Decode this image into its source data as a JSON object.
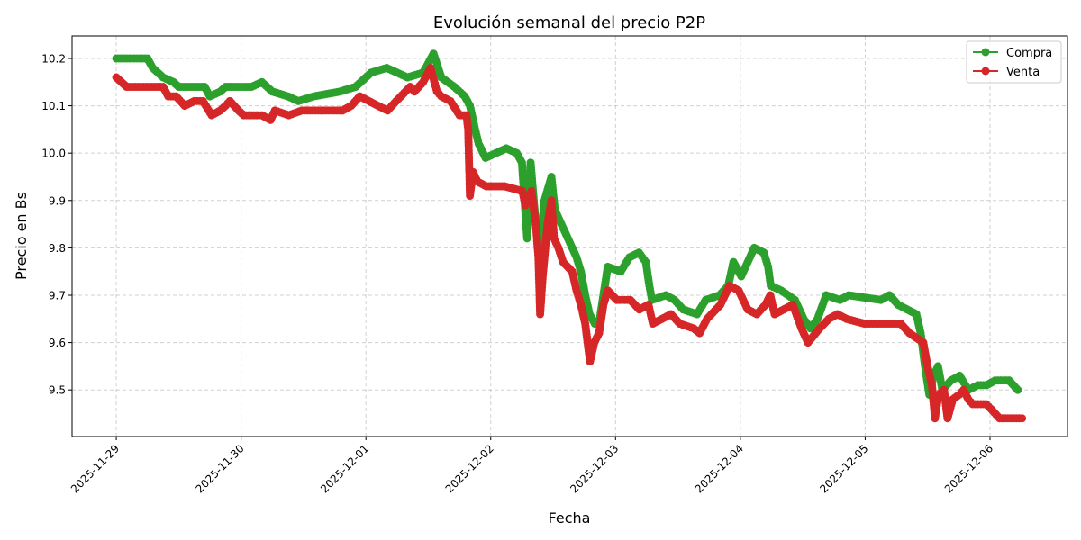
{
  "chart_data": {
    "type": "line",
    "title": "Evolución semanal del precio P2P",
    "xlabel": "Fecha",
    "ylabel": "Precio en Bs",
    "xlim": [
      "2025-11-28T15:30",
      "2025-12-06T14:54"
    ],
    "ylim": [
      9.4015,
      10.2475
    ],
    "x_ticks": [
      "2025-11-29",
      "2025-11-30",
      "2025-12-01",
      "2025-12-02",
      "2025-12-03",
      "2025-12-04",
      "2025-12-05",
      "2025-12-06"
    ],
    "y_ticks": [
      "9.5",
      "9.6",
      "9.7",
      "9.8",
      "9.9",
      "10.0",
      "10.1",
      "10.2"
    ],
    "grid": true,
    "legend_position": "top-right",
    "series": [
      {
        "name": "Compra",
        "color": "#2ca02c",
        "marker": "circle",
        "points": [
          [
            "2025-11-29T00:00",
            10.2
          ],
          [
            "2025-11-29T06:00",
            10.2
          ],
          [
            "2025-11-29T07:00",
            10.18
          ],
          [
            "2025-11-29T09:00",
            10.16
          ],
          [
            "2025-11-29T11:00",
            10.15
          ],
          [
            "2025-11-29T12:00",
            10.14
          ],
          [
            "2025-11-29T17:00",
            10.14
          ],
          [
            "2025-11-29T18:00",
            10.12
          ],
          [
            "2025-11-29T20:00",
            10.13
          ],
          [
            "2025-11-29T21:00",
            10.14
          ],
          [
            "2025-11-30T02:00",
            10.14
          ],
          [
            "2025-11-30T04:00",
            10.15
          ],
          [
            "2025-11-30T06:00",
            10.13
          ],
          [
            "2025-11-30T09:00",
            10.12
          ],
          [
            "2025-11-30T11:00",
            10.11
          ],
          [
            "2025-11-30T14:00",
            10.12
          ],
          [
            "2025-11-30T19:00",
            10.13
          ],
          [
            "2025-11-30T22:00",
            10.14
          ],
          [
            "2025-12-01T01:00",
            10.17
          ],
          [
            "2025-12-01T04:00",
            10.18
          ],
          [
            "2025-12-01T06:00",
            10.17
          ],
          [
            "2025-12-01T08:00",
            10.16
          ],
          [
            "2025-12-01T11:00",
            10.17
          ],
          [
            "2025-12-01T13:00",
            10.21
          ],
          [
            "2025-12-01T14:30",
            10.16
          ],
          [
            "2025-12-01T17:00",
            10.14
          ],
          [
            "2025-12-01T19:00",
            10.12
          ],
          [
            "2025-12-01T20:00",
            10.1
          ],
          [
            "2025-12-01T21:00",
            10.05
          ],
          [
            "2025-12-01T21:40",
            10.02
          ],
          [
            "2025-12-01T23:00",
            9.99
          ],
          [
            "2025-12-02T01:00",
            10.0
          ],
          [
            "2025-12-02T03:00",
            10.01
          ],
          [
            "2025-12-02T05:00",
            10.0
          ],
          [
            "2025-12-02T06:00",
            9.98
          ],
          [
            "2025-12-02T07:00",
            9.82
          ],
          [
            "2025-12-02T07:40",
            9.98
          ],
          [
            "2025-12-02T08:40",
            9.85
          ],
          [
            "2025-12-02T09:30",
            9.8
          ],
          [
            "2025-12-02T10:20",
            9.9
          ],
          [
            "2025-12-02T11:40",
            9.95
          ],
          [
            "2025-12-02T12:20",
            9.88
          ],
          [
            "2025-12-02T13:10",
            9.86
          ],
          [
            "2025-12-02T14:50",
            9.82
          ],
          [
            "2025-12-02T16:30",
            9.78
          ],
          [
            "2025-12-02T17:20",
            9.75
          ],
          [
            "2025-12-02T18:10",
            9.7
          ],
          [
            "2025-12-02T19:00",
            9.66
          ],
          [
            "2025-12-02T20:00",
            9.64
          ],
          [
            "2025-12-02T20:50",
            9.64
          ],
          [
            "2025-12-02T21:40",
            9.7
          ],
          [
            "2025-12-02T22:30",
            9.76
          ],
          [
            "2025-12-03T01:00",
            9.75
          ],
          [
            "2025-12-03T02:40",
            9.78
          ],
          [
            "2025-12-03T04:30",
            9.79
          ],
          [
            "2025-12-03T05:50",
            9.77
          ],
          [
            "2025-12-03T06:30",
            9.72
          ],
          [
            "2025-12-03T07:00",
            9.69
          ],
          [
            "2025-12-03T09:40",
            9.7
          ],
          [
            "2025-12-03T11:20",
            9.69
          ],
          [
            "2025-12-03T13:00",
            9.67
          ],
          [
            "2025-12-03T15:40",
            9.66
          ],
          [
            "2025-12-03T17:20",
            9.69
          ],
          [
            "2025-12-03T20:00",
            9.7
          ],
          [
            "2025-12-03T21:40",
            9.72
          ],
          [
            "2025-12-03T22:40",
            9.77
          ],
          [
            "2025-12-04T00:10",
            9.74
          ],
          [
            "2025-12-04T01:50",
            9.78
          ],
          [
            "2025-12-04T02:40",
            9.8
          ],
          [
            "2025-12-04T04:30",
            9.79
          ],
          [
            "2025-12-04T05:20",
            9.76
          ],
          [
            "2025-12-04T05:50",
            9.72
          ],
          [
            "2025-12-04T07:50",
            9.71
          ],
          [
            "2025-12-04T10:30",
            9.69
          ],
          [
            "2025-12-04T12:10",
            9.65
          ],
          [
            "2025-12-04T13:30",
            9.63
          ],
          [
            "2025-12-04T14:50",
            9.65
          ],
          [
            "2025-12-04T16:30",
            9.7
          ],
          [
            "2025-12-04T19:10",
            9.69
          ],
          [
            "2025-12-04T20:50",
            9.7
          ],
          [
            "2025-12-05T03:00",
            9.69
          ],
          [
            "2025-12-05T04:40",
            9.7
          ],
          [
            "2025-12-05T06:20",
            9.68
          ],
          [
            "2025-12-05T09:50",
            9.66
          ],
          [
            "2025-12-05T10:40",
            9.62
          ],
          [
            "2025-12-05T11:30",
            9.55
          ],
          [
            "2025-12-05T12:20",
            9.49
          ],
          [
            "2025-12-05T13:10",
            9.53
          ],
          [
            "2025-12-05T14:00",
            9.55
          ],
          [
            "2025-12-05T14:50",
            9.5
          ],
          [
            "2025-12-05T16:30",
            9.52
          ],
          [
            "2025-12-05T18:10",
            9.53
          ],
          [
            "2025-12-05T19:50",
            9.5
          ],
          [
            "2025-12-05T21:40",
            9.51
          ],
          [
            "2025-12-05T23:20",
            9.51
          ],
          [
            "2025-12-06T01:00",
            9.52
          ],
          [
            "2025-12-06T03:40",
            9.52
          ],
          [
            "2025-12-06T05:20",
            9.5
          ]
        ]
      },
      {
        "name": "Venta",
        "color": "#d62728",
        "marker": "circle",
        "points": [
          [
            "2025-11-29T00:00",
            10.16
          ],
          [
            "2025-11-29T01:00",
            10.15
          ],
          [
            "2025-11-29T02:00",
            10.14
          ],
          [
            "2025-11-29T09:00",
            10.14
          ],
          [
            "2025-11-29T10:00",
            10.12
          ],
          [
            "2025-11-29T11:30",
            10.12
          ],
          [
            "2025-11-29T13:10",
            10.1
          ],
          [
            "2025-11-29T15:00",
            10.11
          ],
          [
            "2025-11-29T16:40",
            10.11
          ],
          [
            "2025-11-29T18:20",
            10.08
          ],
          [
            "2025-11-29T20:00",
            10.09
          ],
          [
            "2025-11-29T21:00",
            10.1
          ],
          [
            "2025-11-29T21:50",
            10.11
          ],
          [
            "2025-11-29T23:30",
            10.09
          ],
          [
            "2025-11-30T00:30",
            10.08
          ],
          [
            "2025-11-30T04:00",
            10.08
          ],
          [
            "2025-11-30T05:40",
            10.07
          ],
          [
            "2025-11-30T06:30",
            10.09
          ],
          [
            "2025-11-30T09:10",
            10.08
          ],
          [
            "2025-11-30T11:40",
            10.09
          ],
          [
            "2025-11-30T19:30",
            10.09
          ],
          [
            "2025-11-30T21:10",
            10.1
          ],
          [
            "2025-11-30T22:50",
            10.12
          ],
          [
            "2025-12-01T02:20",
            10.1
          ],
          [
            "2025-12-01T04:10",
            10.09
          ],
          [
            "2025-12-01T05:50",
            10.11
          ],
          [
            "2025-12-01T08:30",
            10.14
          ],
          [
            "2025-12-01T09:20",
            10.13
          ],
          [
            "2025-12-01T11:00",
            10.15
          ],
          [
            "2025-12-01T12:25",
            10.18
          ],
          [
            "2025-12-01T13:40",
            10.13
          ],
          [
            "2025-12-01T14:30",
            10.12
          ],
          [
            "2025-12-01T16:15",
            10.11
          ],
          [
            "2025-12-01T18:00",
            10.08
          ],
          [
            "2025-12-01T19:20",
            10.08
          ],
          [
            "2025-12-01T19:40",
            10.05
          ],
          [
            "2025-12-01T20:00",
            9.91
          ],
          [
            "2025-12-01T20:35",
            9.96
          ],
          [
            "2025-12-01T21:25",
            9.94
          ],
          [
            "2025-12-01T23:10",
            9.93
          ],
          [
            "2025-12-02T02:40",
            9.93
          ],
          [
            "2025-12-02T06:05",
            9.92
          ],
          [
            "2025-12-02T06:40",
            9.89
          ],
          [
            "2025-12-02T07:50",
            9.92
          ],
          [
            "2025-12-02T08:40",
            9.85
          ],
          [
            "2025-12-02T09:10",
            9.78
          ],
          [
            "2025-12-02T09:30",
            9.66
          ],
          [
            "2025-12-02T10:00",
            9.74
          ],
          [
            "2025-12-02T10:55",
            9.85
          ],
          [
            "2025-12-02T11:40",
            9.9
          ],
          [
            "2025-12-02T12:10",
            9.82
          ],
          [
            "2025-12-02T13:00",
            9.8
          ],
          [
            "2025-12-02T13:55",
            9.77
          ],
          [
            "2025-12-02T15:40",
            9.75
          ],
          [
            "2025-12-02T16:30",
            9.71
          ],
          [
            "2025-12-02T17:20",
            9.68
          ],
          [
            "2025-12-02T18:10",
            9.64
          ],
          [
            "2025-12-02T19:05",
            9.56
          ],
          [
            "2025-12-02T19:55",
            9.6
          ],
          [
            "2025-12-02T20:50",
            9.62
          ],
          [
            "2025-12-02T21:40",
            9.68
          ],
          [
            "2025-12-02T22:30",
            9.71
          ],
          [
            "2025-12-03T00:15",
            9.69
          ],
          [
            "2025-12-03T02:50",
            9.69
          ],
          [
            "2025-12-03T04:35",
            9.67
          ],
          [
            "2025-12-03T06:20",
            9.68
          ],
          [
            "2025-12-03T07:10",
            9.64
          ],
          [
            "2025-12-03T08:55",
            9.65
          ],
          [
            "2025-12-03T10:40",
            9.66
          ],
          [
            "2025-12-03T12:20",
            9.64
          ],
          [
            "2025-12-03T15:00",
            9.63
          ],
          [
            "2025-12-03T16:10",
            9.62
          ],
          [
            "2025-12-03T17:35",
            9.65
          ],
          [
            "2025-12-03T20:10",
            9.68
          ],
          [
            "2025-12-03T21:55",
            9.72
          ],
          [
            "2025-12-03T23:40",
            9.71
          ],
          [
            "2025-12-04T01:25",
            9.67
          ],
          [
            "2025-12-04T03:10",
            9.66
          ],
          [
            "2025-12-04T04:50",
            9.68
          ],
          [
            "2025-12-04T05:45",
            9.7
          ],
          [
            "2025-12-04T06:35",
            9.66
          ],
          [
            "2025-12-04T08:20",
            9.67
          ],
          [
            "2025-12-04T10:05",
            9.68
          ],
          [
            "2025-12-04T11:45",
            9.63
          ],
          [
            "2025-12-04T13:00",
            9.6
          ],
          [
            "2025-12-04T15:15",
            9.63
          ],
          [
            "2025-12-04T17:00",
            9.65
          ],
          [
            "2025-12-04T18:40",
            9.66
          ],
          [
            "2025-12-04T20:25",
            9.65
          ],
          [
            "2025-12-04T23:50",
            9.64
          ],
          [
            "2025-12-05T06:50",
            9.64
          ],
          [
            "2025-12-05T08:30",
            9.62
          ],
          [
            "2025-12-05T11:10",
            9.6
          ],
          [
            "2025-12-05T12:00",
            9.55
          ],
          [
            "2025-12-05T12:50",
            9.51
          ],
          [
            "2025-12-05T13:25",
            9.44
          ],
          [
            "2025-12-05T14:05",
            9.49
          ],
          [
            "2025-12-05T15:10",
            9.5
          ],
          [
            "2025-12-05T15:50",
            9.44
          ],
          [
            "2025-12-05T16:50",
            9.48
          ],
          [
            "2025-12-05T18:05",
            9.49
          ],
          [
            "2025-12-05T18:55",
            9.5
          ],
          [
            "2025-12-05T19:50",
            9.48
          ],
          [
            "2025-12-05T20:40",
            9.47
          ],
          [
            "2025-12-05T23:15",
            9.47
          ],
          [
            "2025-12-06T00:10",
            9.46
          ],
          [
            "2025-12-06T01:50",
            9.44
          ],
          [
            "2025-12-06T06:10",
            9.44
          ]
        ]
      }
    ]
  }
}
